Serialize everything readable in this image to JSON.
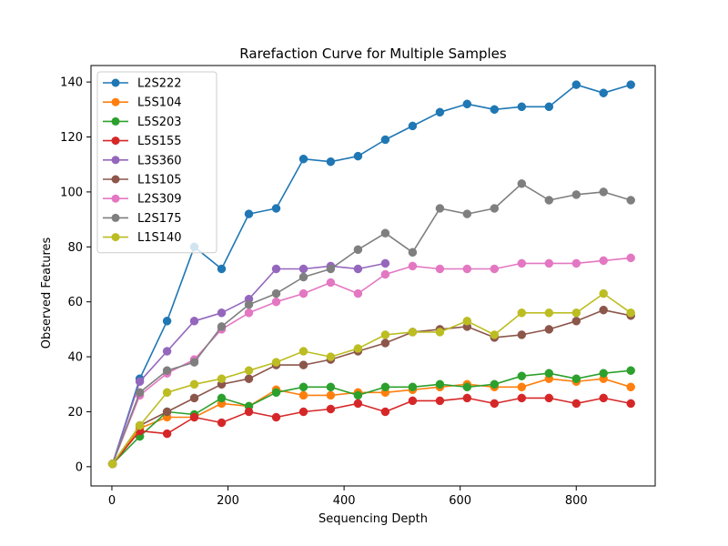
{
  "chart_data": {
    "type": "line",
    "title": "Rarefaction Curve for Multiple Samples",
    "xlabel": "Sequencing Depth",
    "ylabel": "Observed Features",
    "xlim": [
      -36,
      936
    ],
    "ylim": [
      -7,
      146
    ],
    "xticks": [
      0,
      200,
      400,
      600,
      800
    ],
    "yticks": [
      0,
      20,
      40,
      60,
      80,
      100,
      120,
      140
    ],
    "grid": false,
    "legend_position": "upper-left",
    "x": [
      1,
      48,
      95,
      142,
      189,
      236,
      283,
      330,
      377,
      424,
      471,
      518,
      565,
      612,
      659,
      706,
      753,
      800,
      847,
      894
    ],
    "series": [
      {
        "name": "L2S222",
        "color": "#1f77b4",
        "values": [
          1,
          32,
          53,
          80,
          72,
          92,
          94,
          112,
          111,
          113,
          119,
          124,
          129,
          132,
          130,
          131,
          131,
          139,
          136,
          139
        ]
      },
      {
        "name": "L5S104",
        "color": "#ff7f0e",
        "values": [
          1,
          14,
          18,
          18,
          23,
          22,
          28,
          26,
          26,
          27,
          27,
          28,
          29,
          30,
          29,
          29,
          32,
          31,
          32,
          29
        ]
      },
      {
        "name": "L5S203",
        "color": "#2ca02c",
        "values": [
          1,
          11,
          20,
          19,
          25,
          22,
          27,
          29,
          29,
          26,
          29,
          29,
          30,
          29,
          30,
          33,
          34,
          32,
          34,
          35
        ]
      },
      {
        "name": "L5S155",
        "color": "#d62728",
        "values": [
          1,
          13,
          12,
          18,
          16,
          20,
          18,
          20,
          21,
          23,
          20,
          24,
          24,
          25,
          23,
          25,
          25,
          23,
          25,
          23
        ]
      },
      {
        "name": "L3S360",
        "color": "#9467bd",
        "values": [
          1,
          31,
          42,
          53,
          56,
          61,
          72,
          72,
          73,
          72,
          74,
          null,
          null,
          null,
          null,
          null,
          null,
          null,
          null,
          null
        ]
      },
      {
        "name": "L1S105",
        "color": "#8c564b",
        "values": [
          1,
          15,
          20,
          25,
          30,
          32,
          37,
          37,
          39,
          42,
          45,
          49,
          50,
          51,
          47,
          48,
          50,
          53,
          57,
          55
        ]
      },
      {
        "name": "L2S309",
        "color": "#e377c2",
        "values": [
          1,
          26,
          34,
          39,
          50,
          56,
          60,
          63,
          67,
          63,
          70,
          73,
          72,
          72,
          72,
          74,
          74,
          74,
          75,
          76
        ]
      },
      {
        "name": "L2S175",
        "color": "#7f7f7f",
        "values": [
          1,
          27,
          35,
          38,
          51,
          59,
          63,
          69,
          72,
          79,
          85,
          78,
          94,
          92,
          94,
          103,
          97,
          99,
          100,
          97
        ]
      },
      {
        "name": "L1S140",
        "color": "#bcbd22",
        "values": [
          1,
          15,
          27,
          30,
          32,
          35,
          38,
          42,
          40,
          43,
          48,
          49,
          49,
          53,
          48,
          56,
          56,
          56,
          63,
          56
        ]
      }
    ]
  }
}
